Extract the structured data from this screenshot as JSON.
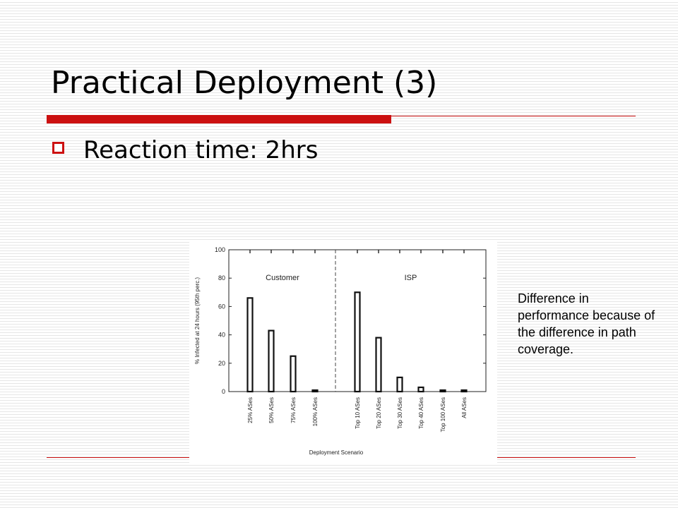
{
  "slide": {
    "title": "Practical Deployment (3)",
    "bullet": "Reaction time: 2hrs",
    "note": "Difference in performance because of the difference in path coverage.",
    "colors": {
      "accent": "#cc1111",
      "bullet_box": "#cc1111"
    }
  },
  "chart_data": {
    "type": "bar",
    "xlabel": "Deployment Scenario",
    "ylabel": "% Infected at 24 hours (95th perc.)",
    "ylim": [
      0,
      100
    ],
    "yticks": [
      0,
      20,
      40,
      60,
      80,
      100
    ],
    "grid": false,
    "groups": [
      {
        "name": "Customer",
        "categories": [
          "25% ASes",
          "50% ASes",
          "75% ASes",
          "100% ASes"
        ],
        "values": [
          66,
          43,
          25,
          1
        ]
      },
      {
        "name": "ISP",
        "categories": [
          "Top 10 ASes",
          "Top 20 ASes",
          "Top 30 ASes",
          "Top 40 ASes",
          "Top 100 ASes",
          "All ASes"
        ],
        "values": [
          70,
          38,
          10,
          3,
          1,
          1
        ]
      }
    ]
  }
}
